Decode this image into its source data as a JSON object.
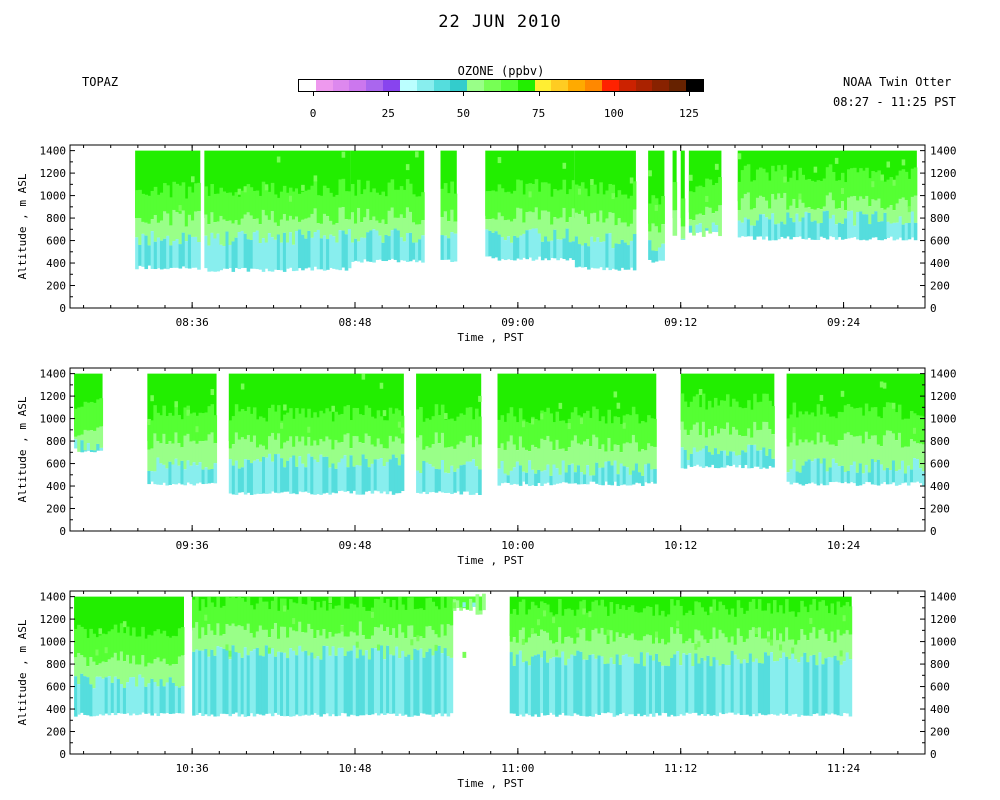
{
  "header": {
    "title": "22 JUN 2010",
    "left_label": "TOPAZ",
    "right_label_line1": "NOAA Twin Otter",
    "right_label_line2": "08:27 - 11:25 PST"
  },
  "colorbar": {
    "title": "OZONE (ppbv)",
    "tick_labels": [
      "0",
      "25",
      "50",
      "75",
      "100",
      "125"
    ],
    "tick_values": [
      0,
      25,
      50,
      75,
      100,
      125
    ],
    "range": [
      -5,
      130
    ],
    "colors": [
      "#ffffff",
      "#ee99ee",
      "#dd88ee",
      "#cc77ee",
      "#aa66ee",
      "#8844ee",
      "#bbffff",
      "#88eeee",
      "#55dddd",
      "#33cccc",
      "#99ff88",
      "#77ff55",
      "#55ff33",
      "#22ee00",
      "#ffee33",
      "#ffcc22",
      "#ffaa00",
      "#ff8800",
      "#ff2200",
      "#cc2200",
      "#aa2200",
      "#882200",
      "#662200",
      "#000000"
    ]
  },
  "chart_data": [
    {
      "type": "heatmap",
      "panel": "panel-1",
      "xlabel": "Time , PST",
      "ylabel": "Altitude , m ASL",
      "xlim": [
        8.45,
        9.5
      ],
      "ylim": [
        0,
        1450
      ],
      "x_ticks": [
        "08:36",
        "08:48",
        "09:00",
        "09:12",
        "09:24"
      ],
      "x_tick_hours": [
        8.6,
        8.8,
        9.0,
        9.2,
        9.4
      ],
      "y_ticks": [
        0,
        200,
        400,
        600,
        800,
        1000,
        1200,
        1400
      ],
      "segments": [
        {
          "x": [
            8.53,
            8.61
          ],
          "top": 1400,
          "bottom": 340,
          "boundary_layer_top": 620,
          "mixing_top": 800
        },
        {
          "x": [
            8.615,
            8.73
          ],
          "top": 1400,
          "bottom": 320,
          "boundary_layer_top": 620,
          "mixing_top": 800
        },
        {
          "x": [
            8.73,
            8.795
          ],
          "top": 1400,
          "bottom": 330,
          "boundary_layer_top": 640,
          "mixing_top": 820
        },
        {
          "x": [
            8.795,
            8.885
          ],
          "top": 1400,
          "bottom": 400,
          "boundary_layer_top": 650,
          "mixing_top": 820
        },
        {
          "x": [
            8.905,
            8.925
          ],
          "top": 1400,
          "bottom": 400,
          "boundary_layer_top": 620,
          "mixing_top": 800
        },
        {
          "x": [
            8.96,
            9.07
          ],
          "top": 1400,
          "bottom": 420,
          "boundary_layer_top": 640,
          "mixing_top": 820
        },
        {
          "x": [
            9.07,
            9.145
          ],
          "top": 1400,
          "bottom": 330,
          "boundary_layer_top": 600,
          "mixing_top": 800
        },
        {
          "x": [
            9.16,
            9.18
          ],
          "top": 1400,
          "bottom": 400,
          "boundary_layer_top": 550,
          "mixing_top": 750
        },
        {
          "x": [
            9.19,
            9.195
          ],
          "top": 1400,
          "bottom": 700,
          "boundary_layer_top": 700,
          "mixing_top": 800
        },
        {
          "x": [
            9.2,
            9.205
          ],
          "top": 1400,
          "bottom": 600,
          "boundary_layer_top": 600,
          "mixing_top": 800
        },
        {
          "x": [
            9.21,
            9.25
          ],
          "top": 1400,
          "bottom": 650,
          "boundary_layer_top": 700,
          "mixing_top": 850
        },
        {
          "x": [
            9.27,
            9.49
          ],
          "top": 1400,
          "bottom": 600,
          "boundary_layer_top": 800,
          "mixing_top": 950
        }
      ]
    },
    {
      "type": "heatmap",
      "panel": "panel-2",
      "xlabel": "Time , PST",
      "ylabel": "Altitude , m ASL",
      "xlim": [
        9.45,
        10.5
      ],
      "ylim": [
        0,
        1450
      ],
      "x_ticks": [
        "09:36",
        "09:48",
        "10:00",
        "10:12",
        "10:24"
      ],
      "x_tick_hours": [
        9.6,
        9.8,
        10.0,
        10.2,
        10.4
      ],
      "y_ticks": [
        0,
        200,
        400,
        600,
        800,
        1000,
        1200,
        1400
      ],
      "segments": [
        {
          "x": [
            9.455,
            9.49
          ],
          "top": 1400,
          "bottom": 700,
          "boundary_layer_top": 750,
          "mixing_top": 900
        },
        {
          "x": [
            9.545,
            9.63
          ],
          "top": 1400,
          "bottom": 400,
          "boundary_layer_top": 600,
          "mixing_top": 800
        },
        {
          "x": [
            9.645,
            9.86
          ],
          "top": 1400,
          "bottom": 320,
          "boundary_layer_top": 620,
          "mixing_top": 800
        },
        {
          "x": [
            9.875,
            9.955
          ],
          "top": 1400,
          "bottom": 320,
          "boundary_layer_top": 580,
          "mixing_top": 800
        },
        {
          "x": [
            9.975,
            10.17
          ],
          "top": 1400,
          "bottom": 400,
          "boundary_layer_top": 560,
          "mixing_top": 780
        },
        {
          "x": [
            10.2,
            10.315
          ],
          "top": 1400,
          "bottom": 550,
          "boundary_layer_top": 700,
          "mixing_top": 900
        },
        {
          "x": [
            10.33,
            10.5
          ],
          "top": 1400,
          "bottom": 400,
          "boundary_layer_top": 580,
          "mixing_top": 820
        }
      ]
    },
    {
      "type": "heatmap",
      "panel": "panel-3",
      "xlabel": "Time , PST",
      "ylabel": "Altitude , m ASL",
      "xlim": [
        10.45,
        11.5
      ],
      "ylim": [
        0,
        1450
      ],
      "x_ticks": [
        "10:36",
        "10:48",
        "11:00",
        "11:12",
        "11:24"
      ],
      "x_tick_hours": [
        10.6,
        10.8,
        11.0,
        11.2,
        11.4
      ],
      "y_ticks": [
        0,
        200,
        400,
        600,
        800,
        1000,
        1200,
        1400
      ],
      "segments": [
        {
          "x": [
            10.455,
            10.59
          ],
          "top": 1400,
          "bottom": 330,
          "boundary_layer_top": 650,
          "mixing_top": 850
        },
        {
          "x": [
            10.6,
            10.92
          ],
          "top": 1400,
          "bottom": 330,
          "boundary_layer_top": 900,
          "mixing_top": 1100
        },
        {
          "x": [
            10.92,
            10.96
          ],
          "top": 1400,
          "bottom": 1300,
          "boundary_layer_top": 1300,
          "mixing_top": 1350
        },
        {
          "x": [
            10.99,
            11.41
          ],
          "top": 1400,
          "bottom": 330,
          "boundary_layer_top": 850,
          "mixing_top": 1050
        }
      ]
    }
  ]
}
